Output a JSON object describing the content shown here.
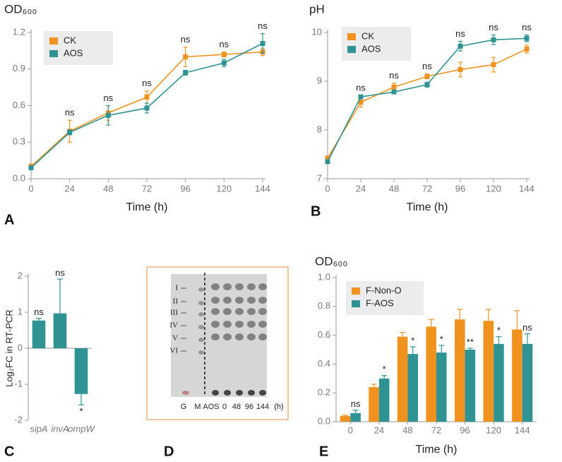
{
  "chart_data": [
    {
      "type": "line",
      "panel": "A",
      "title": "OD₆₀₀",
      "xlabel": "Time (h)",
      "x": [
        0,
        24,
        48,
        72,
        96,
        120,
        144
      ],
      "xlim": [
        0,
        144
      ],
      "xticks": [
        0,
        24,
        48,
        72,
        96,
        120,
        144
      ],
      "ylim": [
        0,
        1.2
      ],
      "yticks": [
        {
          "value": 0,
          "label": "0.0"
        },
        0.3,
        0.6,
        0.9,
        1.2
      ],
      "legend": "upper left",
      "series": [
        {
          "name": "CK",
          "color": "#f0931e",
          "values": [
            0.1,
            0.39,
            0.54,
            0.67,
            1.0,
            1.02,
            1.04
          ],
          "errors": [
            0.02,
            0.09,
            0.06,
            0.05,
            0.08,
            0.02,
            0.03
          ]
        },
        {
          "name": "AOS",
          "color": "#2f9393",
          "values": [
            0.09,
            0.38,
            0.52,
            0.58,
            0.87,
            0.95,
            1.11
          ],
          "errors": [
            0.01,
            0.02,
            0.08,
            0.04,
            0.02,
            0.03,
            0.08
          ]
        }
      ],
      "annotations": [
        {
          "x": 24,
          "text": "ns"
        },
        {
          "x": 48,
          "text": "ns"
        },
        {
          "x": 72,
          "text": "ns"
        },
        {
          "x": 96,
          "text": "ns"
        },
        {
          "x": 120,
          "text": "ns"
        },
        {
          "x": 144,
          "text": "ns"
        }
      ]
    },
    {
      "type": "line",
      "panel": "B",
      "title": "pH",
      "xlabel": "Time (h)",
      "x": [
        0,
        24,
        48,
        72,
        96,
        120,
        144
      ],
      "xlim": [
        0,
        144
      ],
      "xticks": [
        0,
        24,
        48,
        72,
        96,
        120,
        144
      ],
      "ylim": [
        7,
        10
      ],
      "yticks": [
        7,
        8,
        9,
        10
      ],
      "legend": "upper left",
      "series": [
        {
          "name": "CK",
          "color": "#f0931e",
          "values": [
            7.42,
            8.57,
            8.88,
            9.1,
            9.24,
            9.34,
            9.66
          ],
          "errors": [
            0.05,
            0.1,
            0.08,
            0.05,
            0.15,
            0.15,
            0.08
          ]
        },
        {
          "name": "AOS",
          "color": "#2f9393",
          "values": [
            7.35,
            8.68,
            8.78,
            8.93,
            9.72,
            9.85,
            9.88
          ],
          "errors": [
            0.03,
            0.03,
            0.03,
            0.05,
            0.1,
            0.1,
            0.07
          ]
        }
      ],
      "annotations": [
        {
          "x": 24,
          "text": "ns"
        },
        {
          "x": 48,
          "text": "ns"
        },
        {
          "x": 72,
          "text": "ns"
        },
        {
          "x": 96,
          "text": "ns"
        },
        {
          "x": 120,
          "text": "ns"
        },
        {
          "x": 144,
          "text": "ns"
        }
      ]
    },
    {
      "type": "bar",
      "panel": "C",
      "ylabel": "Log₂FC in RT-PCR",
      "categories": [
        "sipA",
        "invA",
        "ompW"
      ],
      "ylim": [
        -2,
        2
      ],
      "yticks": [
        -2,
        -1,
        0,
        1,
        2
      ],
      "series": [
        {
          "name": null,
          "color": "#2f9393",
          "values": [
            0.77,
            0.97,
            -1.27
          ],
          "errors": [
            0.06,
            0.95,
            0.3
          ],
          "annotations": [
            "ns",
            "ns",
            "*"
          ]
        }
      ]
    },
    {
      "type": "bar",
      "panel": "E",
      "title": "OD₆₀₀",
      "xlabel": "Time (h)",
      "categories": [
        "0",
        "24",
        "48",
        "72",
        "96",
        "120",
        "144"
      ],
      "ylim": [
        0,
        1
      ],
      "yticks": [
        {
          "value": 0,
          "label": "0.0"
        },
        0.2,
        0.4,
        0.6,
        0.8,
        {
          "value": 1,
          "label": "1.0"
        }
      ],
      "legend": "upper left",
      "series": [
        {
          "name": "F-Non-O",
          "color": "#f0931e",
          "values": [
            0.04,
            0.24,
            0.59,
            0.66,
            0.71,
            0.7,
            0.64
          ],
          "errors": [
            0.005,
            0.02,
            0.03,
            0.05,
            0.07,
            0.08,
            0.13
          ]
        },
        {
          "name": "F-AOS",
          "color": "#2f9393",
          "values": [
            0.06,
            0.3,
            0.47,
            0.48,
            0.5,
            0.54,
            0.54
          ],
          "errors": [
            0.02,
            0.02,
            0.05,
            0.05,
            0.01,
            0.05,
            0.07
          ],
          "annotations": [
            "ns",
            "*",
            "*",
            "*",
            "**",
            "*",
            "ns"
          ]
        }
      ]
    }
  ],
  "gel": {
    "panel": "D",
    "band_labels": [
      "I",
      "II",
      "III",
      "IV",
      "V",
      "VI"
    ],
    "lane_labels": [
      "G",
      "M",
      "AOS",
      "0",
      "48",
      "96",
      "144",
      "(h)"
    ]
  }
}
